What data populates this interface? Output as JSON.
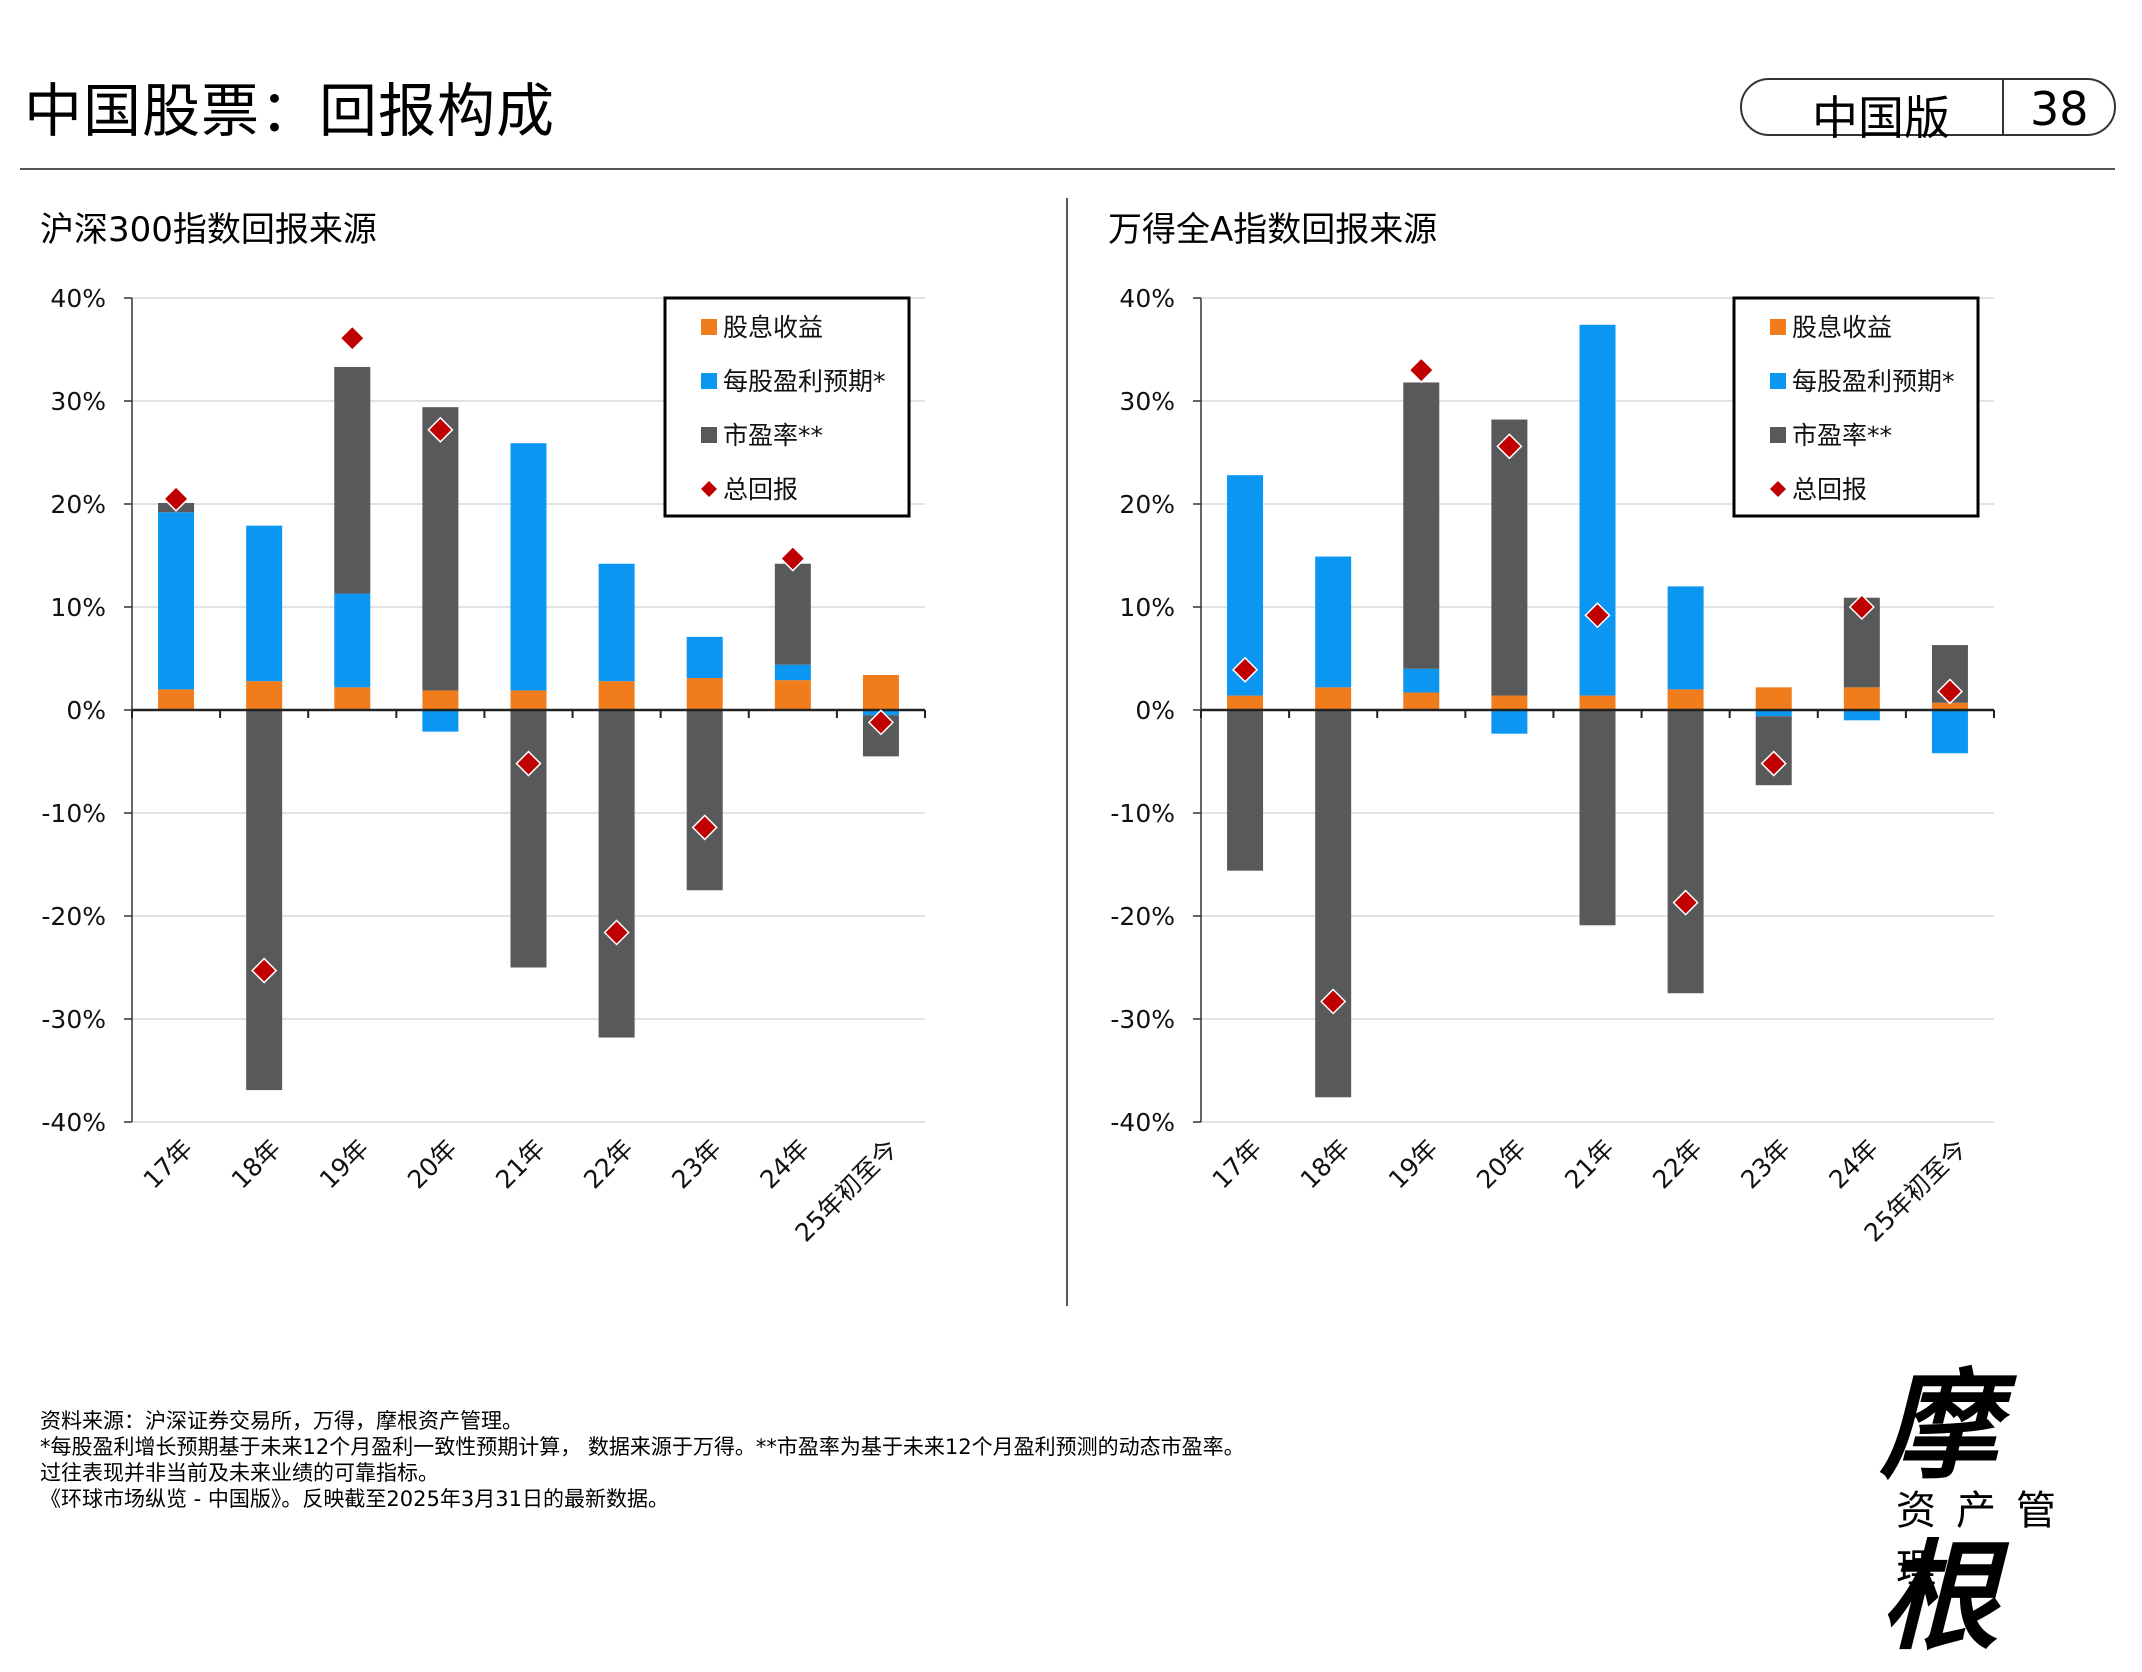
{
  "header": {
    "title": "中国股票：回报构成",
    "edition": "中国版",
    "page_number": "38"
  },
  "charts": [
    {
      "subtitle": "沪深300指数回报来源"
    },
    {
      "subtitle": "万得全A指数回报来源"
    }
  ],
  "legend": {
    "items": [
      {
        "label": "股息收益",
        "color": "#f07c1b",
        "marker": "square"
      },
      {
        "label": "每股盈利预期*",
        "color": "#0b96f2",
        "marker": "square"
      },
      {
        "label": "市盈率**",
        "color": "#57595b",
        "marker": "square"
      },
      {
        "label": "总回报",
        "color": "#c00000",
        "marker": "diamond"
      }
    ],
    "placement": "top-right"
  },
  "chart_data": [
    {
      "type": "bar",
      "stacked": true,
      "title": "沪深300指数回报来源",
      "categories": [
        "17年",
        "18年",
        "19年",
        "20年",
        "21年",
        "22年",
        "23年",
        "24年",
        "25年初至今"
      ],
      "series": [
        {
          "name": "股息收益",
          "color": "#f07c1b",
          "values": [
            2.0,
            2.8,
            2.2,
            1.9,
            1.9,
            2.8,
            3.1,
            2.9,
            3.4
          ]
        },
        {
          "name": "每股盈利预期*",
          "color": "#0b96f2",
          "values": [
            17.2,
            15.1,
            9.1,
            -2.1,
            24.0,
            11.4,
            4.0,
            1.5,
            -0.5
          ]
        },
        {
          "name": "市盈率**",
          "color": "#57595b",
          "values": [
            0.9,
            -36.9,
            22.0,
            27.5,
            -25.0,
            -31.8,
            -17.5,
            9.8,
            -4.0
          ]
        },
        {
          "name": "总回报",
          "type": "scatter",
          "color": "#c00000",
          "values": [
            20.5,
            -25.3,
            36.1,
            27.2,
            -5.2,
            -21.6,
            -11.4,
            14.7,
            -1.2
          ]
        }
      ],
      "ylim": [
        -40,
        40
      ],
      "yticks": [
        -40,
        -30,
        -20,
        -10,
        0,
        10,
        20,
        30,
        40
      ],
      "ytick_labels": [
        "-40%",
        "-30%",
        "-20%",
        "-10%",
        "0%",
        "10%",
        "20%",
        "30%",
        "40%"
      ],
      "grid": true
    },
    {
      "type": "bar",
      "stacked": true,
      "title": "万得全A指数回报来源",
      "categories": [
        "17年",
        "18年",
        "19年",
        "20年",
        "21年",
        "22年",
        "23年",
        "24年",
        "25年初至今"
      ],
      "series": [
        {
          "name": "股息收益",
          "color": "#f07c1b",
          "values": [
            1.4,
            2.2,
            1.7,
            1.4,
            1.4,
            2.0,
            2.2,
            2.2,
            0.7
          ]
        },
        {
          "name": "每股盈利预期*",
          "color": "#0b96f2",
          "values": [
            21.4,
            12.7,
            2.3,
            -2.3,
            36.0,
            10.0,
            -0.6,
            -1.0,
            -4.2
          ]
        },
        {
          "name": "市盈率**",
          "color": "#57595b",
          "values": [
            -15.6,
            -37.6,
            27.8,
            26.8,
            -20.9,
            -27.5,
            -6.7,
            8.7,
            5.6
          ]
        },
        {
          "name": "总回报",
          "type": "scatter",
          "color": "#c00000",
          "values": [
            3.9,
            -28.3,
            33.0,
            25.6,
            9.2,
            -18.7,
            -5.2,
            10.0,
            1.8
          ]
        }
      ],
      "ylim": [
        -40,
        40
      ],
      "yticks": [
        -40,
        -30,
        -20,
        -10,
        0,
        10,
        20,
        30,
        40
      ],
      "ytick_labels": [
        "-40%",
        "-30%",
        "-20%",
        "-10%",
        "0%",
        "10%",
        "20%",
        "30%",
        "40%"
      ],
      "grid": true
    }
  ],
  "footnotes": [
    "资料来源：沪深证券交易所，万得，摩根资产管理。",
    "*每股盈利增长预期基于未来12个月盈利一致性预期计算， 数据来源于万得。**市盈率为基于未来12个月盈利预测的动态市盈率。",
    "过往表现并非当前及未来业绩的可靠指标。",
    "《环球市场纵览 - 中国版》。反映截至2025年3月31日的最新数据。"
  ],
  "logo": {
    "name": "摩根",
    "tagline": "资产管理"
  }
}
